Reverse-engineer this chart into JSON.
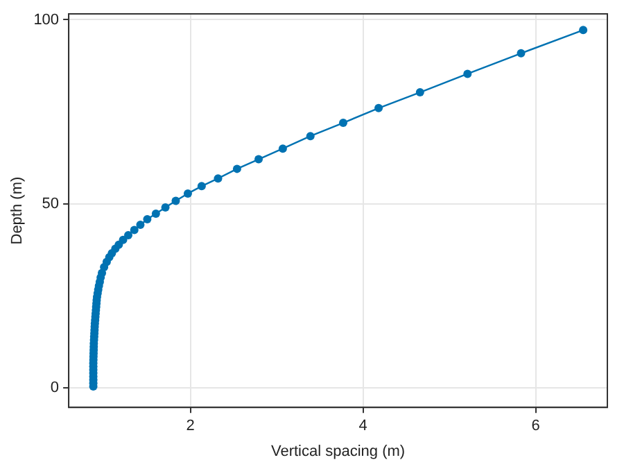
{
  "chart_data": {
    "type": "line",
    "xlabel": "Vertical spacing (m)",
    "ylabel": "Depth (m)",
    "xlim": [
      0.59,
      6.83
    ],
    "ylim": [
      -5.3,
      101.6
    ],
    "xticks": [
      2,
      4,
      6
    ],
    "yticks": [
      0,
      50,
      100
    ],
    "grid": true,
    "legend": false,
    "marker": "circle",
    "line_style": "solid",
    "series": [
      {
        "color": "#0072b2",
        "x": [
          0.875,
          0.875,
          0.875,
          0.875,
          0.875,
          0.875,
          0.875,
          0.875,
          0.876,
          0.877,
          0.878,
          0.879,
          0.88,
          0.881,
          0.883,
          0.885,
          0.887,
          0.889,
          0.891,
          0.893,
          0.896,
          0.899,
          0.902,
          0.905,
          0.908,
          0.911,
          0.914,
          0.918,
          0.925,
          0.932,
          0.94,
          0.95,
          0.96,
          0.975,
          1.0,
          1.03,
          1.06,
          1.09,
          1.13,
          1.17,
          1.22,
          1.28,
          1.35,
          1.42,
          1.5,
          1.6,
          1.71,
          1.83,
          1.97,
          2.13,
          2.32,
          2.54,
          2.79,
          3.07,
          3.39,
          3.77,
          4.18,
          4.66,
          5.21,
          5.83,
          6.55
        ],
        "values": [
          0.4,
          1.3,
          2.2,
          3.1,
          4,
          4.9,
          5.8,
          6.7,
          7.6,
          8.5,
          9.4,
          10.3,
          11.2,
          12.1,
          13,
          13.9,
          14.8,
          15.7,
          16.6,
          17.5,
          18.4,
          19.3,
          20.2,
          21.1,
          22,
          22.9,
          23.8,
          24.7,
          25.7,
          26.7,
          27.7,
          28.8,
          30,
          31.2,
          32.8,
          34.2,
          35.5,
          36.6,
          37.8,
          38.9,
          40.2,
          41.5,
          42.9,
          44.3,
          45.8,
          47.3,
          49,
          50.8,
          52.8,
          54.8,
          56.9,
          59.5,
          62.1,
          65,
          68.4,
          72,
          76,
          80.3,
          85.3,
          90.9,
          97.2
        ]
      }
    ]
  }
}
